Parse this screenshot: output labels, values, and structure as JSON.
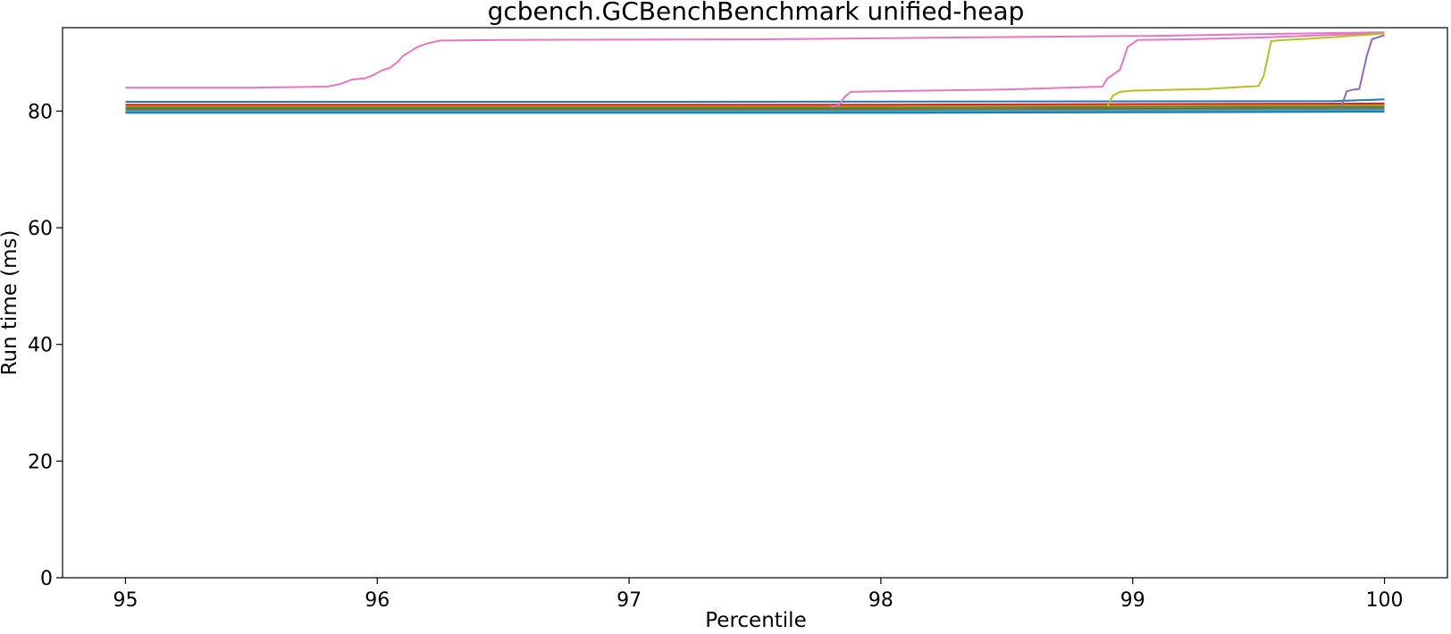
{
  "chart_data": {
    "type": "line",
    "title": "gcbench.GCBenchBenchmark unified-heap",
    "xlabel": "Percentile",
    "ylabel": "Run time (ms)",
    "xlim": [
      94.75,
      100.25
    ],
    "ylim": [
      0,
      94.3
    ],
    "xticks": [
      95,
      96,
      97,
      98,
      99,
      100
    ],
    "yticks": [
      0,
      20,
      40,
      60,
      80
    ],
    "grid": false,
    "legend": "none",
    "series": [
      {
        "color": "#1f77b4",
        "points": [
          [
            95,
            81.6
          ],
          [
            97,
            81.6
          ],
          [
            99.8,
            81.7
          ],
          [
            100,
            82.0
          ]
        ]
      },
      {
        "color": "#ff7f0e",
        "points": [
          [
            95,
            80.9
          ],
          [
            98,
            80.9
          ],
          [
            100,
            81.1
          ]
        ]
      },
      {
        "color": "#2ca02c",
        "points": [
          [
            95,
            80.6
          ],
          [
            98,
            80.6
          ],
          [
            100,
            80.8
          ]
        ]
      },
      {
        "color": "#d62728",
        "points": [
          [
            95,
            81.1
          ],
          [
            98,
            81.1
          ],
          [
            100,
            81.3
          ]
        ]
      },
      {
        "color": "#8c564b",
        "points": [
          [
            95,
            80.3
          ],
          [
            98,
            80.3
          ],
          [
            100,
            80.5
          ]
        ]
      },
      {
        "color": "#7f7f7f",
        "points": [
          [
            95,
            80.1
          ],
          [
            98,
            80.1
          ],
          [
            100,
            80.3
          ]
        ]
      },
      {
        "color": "#17becf",
        "points": [
          [
            95,
            79.9
          ],
          [
            98,
            79.9
          ],
          [
            100,
            80.1
          ]
        ]
      },
      {
        "color": "#1f77b4",
        "points": [
          [
            95,
            79.7
          ],
          [
            98,
            79.7
          ],
          [
            100,
            79.9
          ]
        ]
      },
      {
        "color": "#e377c2",
        "points": [
          [
            95,
            84.0
          ],
          [
            95.5,
            84.0
          ],
          [
            95.8,
            84.2
          ],
          [
            95.85,
            84.6
          ],
          [
            95.9,
            85.4
          ],
          [
            95.95,
            85.6
          ],
          [
            95.98,
            86.1
          ],
          [
            96.02,
            87.0
          ],
          [
            96.05,
            87.4
          ],
          [
            96.08,
            88.4
          ],
          [
            96.1,
            89.4
          ],
          [
            96.13,
            90.2
          ],
          [
            96.16,
            91.0
          ],
          [
            96.2,
            91.6
          ],
          [
            96.25,
            92.1
          ],
          [
            96.5,
            92.2
          ],
          [
            97.5,
            92.3
          ],
          [
            98.5,
            92.7
          ],
          [
            99.1,
            92.9
          ],
          [
            99.5,
            93.2
          ],
          [
            100,
            93.5
          ]
        ]
      },
      {
        "color": "#e377c2",
        "points": [
          [
            97.8,
            80.8
          ],
          [
            97.83,
            80.9
          ],
          [
            97.86,
            82.6
          ],
          [
            97.88,
            83.3
          ],
          [
            98,
            83.4
          ],
          [
            98.5,
            83.7
          ],
          [
            98.88,
            84.2
          ],
          [
            98.9,
            85.6
          ],
          [
            98.93,
            86.5
          ],
          [
            98.95,
            87.1
          ],
          [
            98.98,
            91.0
          ],
          [
            99.02,
            92.2
          ],
          [
            99.2,
            92.3
          ],
          [
            99.5,
            92.6
          ],
          [
            100,
            93.4
          ]
        ]
      },
      {
        "color": "#bcbd22",
        "points": [
          [
            98.9,
            80.8
          ],
          [
            98.92,
            82.6
          ],
          [
            98.95,
            83.3
          ],
          [
            99.0,
            83.5
          ],
          [
            99.3,
            83.8
          ],
          [
            99.5,
            84.3
          ],
          [
            99.52,
            86.0
          ],
          [
            99.55,
            92.0
          ],
          [
            99.6,
            92.2
          ],
          [
            99.7,
            92.4
          ],
          [
            99.8,
            92.7
          ],
          [
            99.9,
            93.0
          ],
          [
            100,
            93.3
          ]
        ]
      },
      {
        "color": "#9467bd",
        "points": [
          [
            99.83,
            80.9
          ],
          [
            99.85,
            83.4
          ],
          [
            99.88,
            83.7
          ],
          [
            99.9,
            83.8
          ],
          [
            99.93,
            89.5
          ],
          [
            99.95,
            92.3
          ],
          [
            99.97,
            92.6
          ],
          [
            100,
            93.0
          ]
        ]
      }
    ]
  }
}
